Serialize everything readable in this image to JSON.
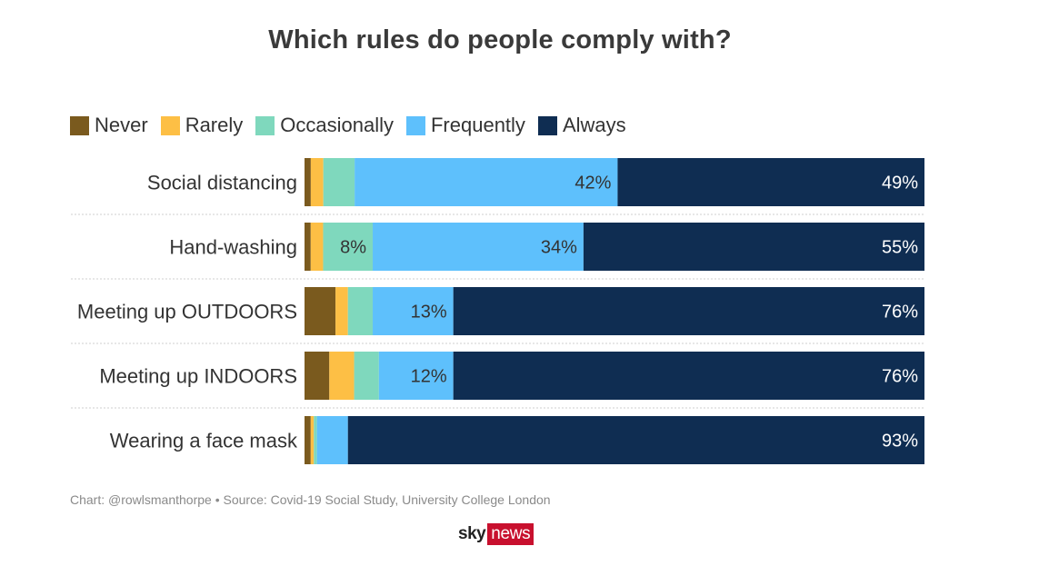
{
  "chart_data": {
    "type": "bar",
    "orientation": "horizontal",
    "stacked": true,
    "title": "Which rules do people comply with?",
    "categories": [
      "Social distancing",
      "Hand-washing",
      "Meeting up OUTDOORS",
      "Meeting up INDOORS",
      "Wearing a face mask"
    ],
    "series": [
      {
        "name": "Never",
        "color": "#7a5a1e",
        "values": [
          1,
          1,
          5,
          4,
          1
        ]
      },
      {
        "name": "Rarely",
        "color": "#fdbf45",
        "values": [
          2,
          2,
          2,
          4,
          0.5
        ]
      },
      {
        "name": "Occasionally",
        "color": "#7fd8bd",
        "values": [
          5,
          8,
          4,
          4,
          0.5
        ]
      },
      {
        "name": "Frequently",
        "color": "#5ec0fc",
        "values": [
          42,
          34,
          13,
          12,
          5
        ]
      },
      {
        "name": "Always",
        "color": "#0f2d52",
        "values": [
          49,
          55,
          76,
          76,
          93
        ]
      }
    ],
    "data_labels": [
      [
        "",
        "",
        "",
        "42%",
        "49%"
      ],
      [
        "",
        "",
        "8%",
        "34%",
        "55%"
      ],
      [
        "",
        "",
        "",
        "13%",
        "76%"
      ],
      [
        "",
        "",
        "",
        "12%",
        "76%"
      ],
      [
        "",
        "",
        "",
        "",
        "93%"
      ]
    ],
    "xlim": [
      0,
      100
    ],
    "legend_position": "top-left",
    "grid": false
  },
  "source_note": "Chart: @rowlsmanthorpe • Source: Covid-19 Social Study, University College London",
  "brand": {
    "part1": "sky",
    "part2": "news"
  }
}
